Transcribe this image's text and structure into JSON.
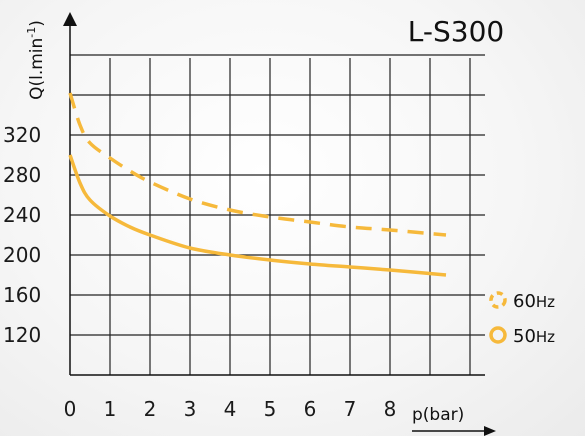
{
  "chart_data": {
    "type": "line",
    "title": "L-S300",
    "xlabel": "p(bar)",
    "ylabel": "Q(l.min-1)",
    "ylabel_sup": "-1",
    "xlim": [
      0,
      10
    ],
    "ylim": [
      80,
      440
    ],
    "grid": true,
    "x_ticks": [
      "0",
      "1",
      "2",
      "3",
      "4",
      "5",
      "6",
      "7",
      "8"
    ],
    "y_ticks": [
      "120",
      "160",
      "200",
      "240",
      "280",
      "320"
    ],
    "legend_position": "right",
    "series": [
      {
        "name": "60Hz",
        "name_num": "60",
        "name_unit": "Hz",
        "style": "dashed",
        "color": "#f6b93b",
        "x": [
          0.0,
          0.25,
          0.5,
          1.0,
          1.5,
          2.0,
          3.0,
          4.0,
          5.0,
          6.0,
          7.0,
          8.0,
          9.4
        ],
        "values": [
          362,
          330,
          312,
          297,
          284,
          273,
          256,
          245,
          238,
          233,
          228,
          225,
          220
        ]
      },
      {
        "name": "50Hz",
        "name_num": "50",
        "name_unit": "Hz",
        "style": "solid",
        "color": "#f6b93b",
        "x": [
          0.0,
          0.25,
          0.5,
          1.0,
          1.5,
          2.0,
          3.0,
          4.0,
          5.0,
          6.0,
          7.0,
          8.0,
          9.4
        ],
        "values": [
          300,
          272,
          255,
          239,
          228,
          220,
          207,
          200,
          195,
          191,
          188,
          185,
          180
        ]
      }
    ]
  }
}
